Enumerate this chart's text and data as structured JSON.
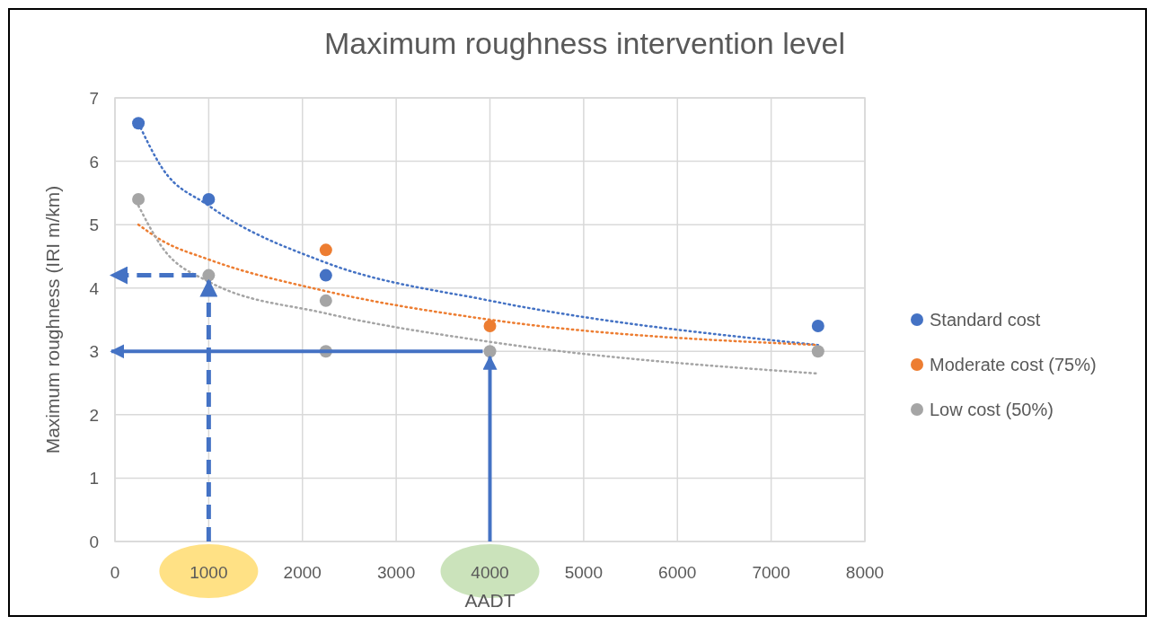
{
  "chart_data": {
    "type": "scatter",
    "title": "Maximum roughness intervention level",
    "xlabel": "AADT",
    "ylabel": "Maximum roughness (IRI m/km)",
    "xlim": [
      0,
      8000
    ],
    "xticks": [
      0,
      1000,
      2000,
      3000,
      4000,
      5000,
      6000,
      7000,
      8000
    ],
    "ylim": [
      0,
      7
    ],
    "yticks": [
      0,
      1,
      2,
      3,
      4,
      5,
      6,
      7
    ],
    "grid": true,
    "legend": "right",
    "marker": "circle",
    "series": [
      {
        "name": "Standard cost",
        "color": "#4472c4",
        "x": [
          250,
          1000,
          2250,
          7500
        ],
        "values": [
          6.6,
          5.4,
          4.2,
          3.4
        ]
      },
      {
        "name": "Moderate cost (75%)",
        "color": "#ed7d31",
        "x": [
          2250,
          4000
        ],
        "values": [
          4.6,
          3.4
        ]
      },
      {
        "name": "Low cost (50%)",
        "color": "#a5a5a5",
        "x": [
          250,
          1000,
          2250,
          2250,
          4000,
          7500
        ],
        "values": [
          5.4,
          4.2,
          3.8,
          3.0,
          3.0,
          3.0
        ]
      },
      {
        "type": "line",
        "color": "#4472c4",
        "line_style": "dotted",
        "marker": "none",
        "x": [
          250,
          500,
          1000,
          2250,
          4000,
          7500
        ],
        "values": [
          6.6,
          5.9,
          5.3,
          4.4,
          3.8,
          3.1
        ]
      },
      {
        "type": "line",
        "color": "#ed7d31",
        "line_style": "dotted",
        "marker": "none",
        "x": [
          250,
          500,
          1000,
          2250,
          4000,
          7500
        ],
        "values": [
          5.0,
          4.75,
          4.45,
          3.95,
          3.5,
          3.1
        ]
      },
      {
        "type": "line",
        "color": "#a5a5a5",
        "line_style": "dotted",
        "marker": "none",
        "x": [
          250,
          500,
          1000,
          2250,
          4000,
          7500
        ],
        "values": [
          5.3,
          4.65,
          4.1,
          3.6,
          3.15,
          2.65
        ]
      }
    ]
  }
}
